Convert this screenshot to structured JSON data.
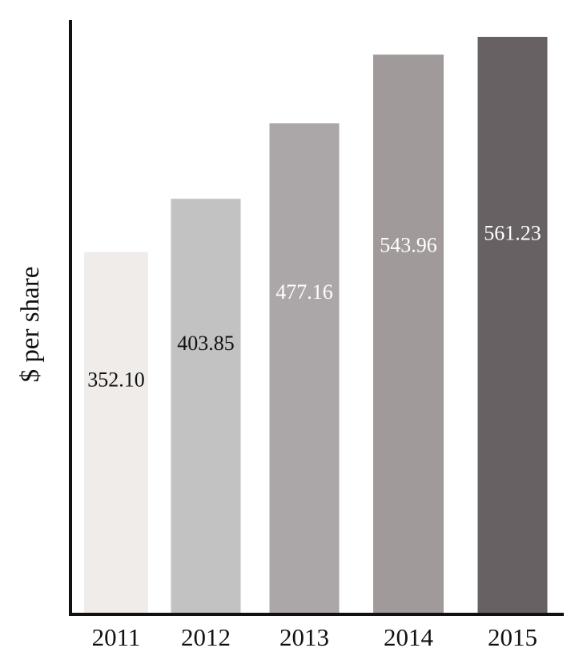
{
  "chart_data": {
    "type": "bar",
    "categories": [
      "2011",
      "2012",
      "2013",
      "2014",
      "2015"
    ],
    "values": [
      352.1,
      403.85,
      477.16,
      543.96,
      561.23
    ],
    "value_labels": [
      "352.10",
      "403.85",
      "477.16",
      "543.96",
      "561.23"
    ],
    "ylabel": "$ per share",
    "xlabel": "",
    "ylim": [
      0,
      561.23
    ],
    "grid": false,
    "bar_colors": [
      "#f0ecea",
      "#c2c2c2",
      "#aba6a7",
      "#a19a9a",
      "#676163"
    ],
    "label_colors": [
      "#111111",
      "#111111",
      "#ffffff",
      "#ffffff",
      "#ffffff"
    ]
  }
}
